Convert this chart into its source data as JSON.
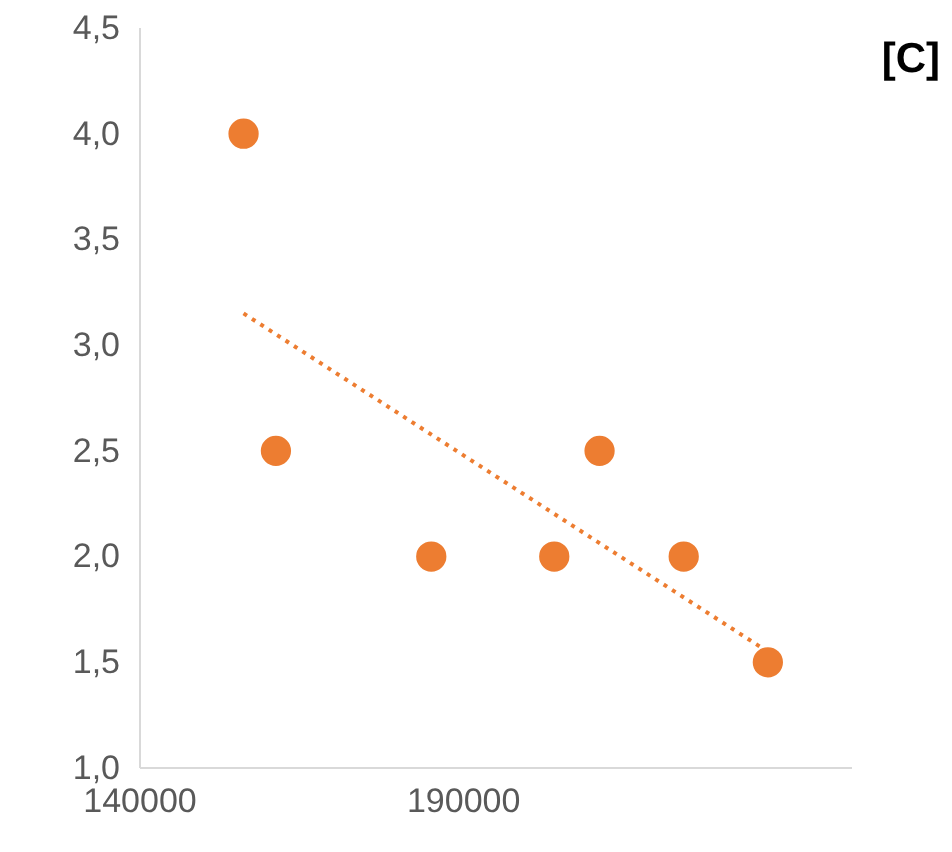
{
  "chart_data": {
    "type": "scatter",
    "title": "[C]",
    "xlim": [
      140000,
      250000
    ],
    "xticks": [
      {
        "value": 140000,
        "label": "140000"
      },
      {
        "value": 190000,
        "label": "190000"
      }
    ],
    "ylim": [
      1.0,
      4.5
    ],
    "yticks": [
      {
        "value": 1.0,
        "label": "1,0"
      },
      {
        "value": 1.5,
        "label": "1,5"
      },
      {
        "value": 2.0,
        "label": "2,0"
      },
      {
        "value": 2.5,
        "label": "2,5"
      },
      {
        "value": 3.0,
        "label": "3,0"
      },
      {
        "value": 3.5,
        "label": "3,5"
      },
      {
        "value": 4.0,
        "label": "4,0"
      },
      {
        "value": 4.5,
        "label": "4,5"
      }
    ],
    "grid": false,
    "marker": "circle",
    "series": [
      {
        "color": "#ed7d31",
        "x": [
          156000,
          161000,
          185000,
          204000,
          211000,
          224000,
          237000
        ],
        "values": [
          4.0,
          2.5,
          2.0,
          2.0,
          2.5,
          2.0,
          1.5
        ]
      },
      {
        "type": "line",
        "color": "#ed7d31",
        "line_style": "dotted",
        "marker": "none",
        "x": [
          156000,
          237000
        ],
        "values": [
          3.15,
          1.55
        ]
      }
    ]
  }
}
